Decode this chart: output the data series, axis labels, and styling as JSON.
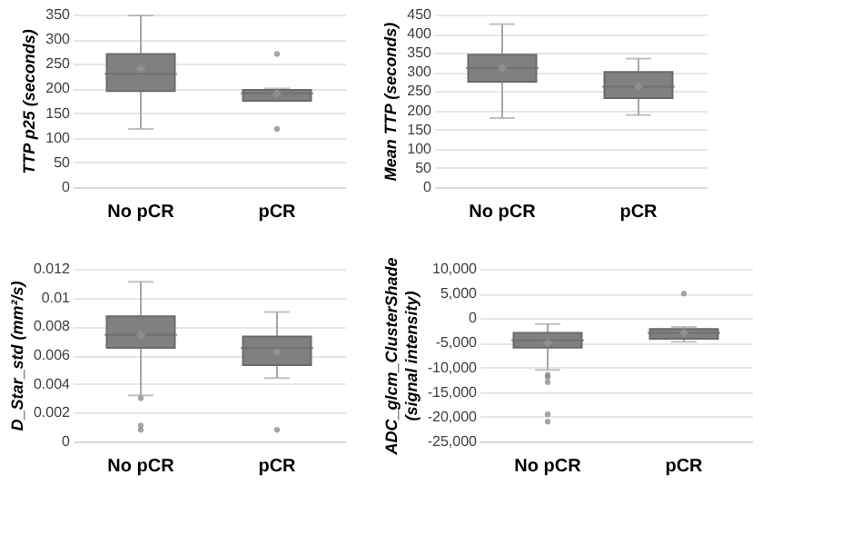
{
  "chart_data": [
    {
      "type": "box",
      "categories": [
        "No pCR",
        "pCR"
      ],
      "ylabel": "TTP p25 (seconds)",
      "ylim": [
        0,
        350
      ],
      "yticks": [
        0,
        50,
        100,
        150,
        200,
        250,
        300,
        350
      ],
      "grid": "y",
      "color": "#808080",
      "boxes": [
        {
          "low": 118,
          "q1": 195,
          "median": 230,
          "q3": 270,
          "high": 348,
          "mean": 240
        },
        {
          "low": 175,
          "q1": 175,
          "median": 190,
          "q3": 197,
          "high": 200,
          "mean": 190,
          "outliers": [
            270,
            118
          ]
        }
      ]
    },
    {
      "type": "box",
      "categories": [
        "No pCR",
        "pCR"
      ],
      "ylabel": "Mean TTP (seconds)",
      "ylim": [
        0,
        450
      ],
      "yticks": [
        0,
        50,
        100,
        150,
        200,
        250,
        300,
        350,
        400,
        450
      ],
      "grid": "y",
      "color": "#808080",
      "boxes": [
        {
          "low": 180,
          "q1": 275,
          "median": 310,
          "q3": 345,
          "high": 425,
          "mean": 310
        },
        {
          "low": 188,
          "q1": 232,
          "median": 262,
          "q3": 300,
          "high": 335,
          "mean": 262
        }
      ]
    },
    {
      "type": "box",
      "categories": [
        "No pCR",
        "pCR"
      ],
      "ylabel": "D_Star_std (mm²/s)",
      "ylim": [
        0,
        0.012
      ],
      "yticks": [
        0,
        0.002,
        0.004,
        0.006,
        0.008,
        0.01,
        0.012
      ],
      "grid": "y",
      "color": "#808080",
      "boxes": [
        {
          "low": 0.0032,
          "q1": 0.0065,
          "median": 0.0074,
          "q3": 0.0087,
          "high": 0.0111,
          "mean": 0.0074,
          "outliers": [
            0.003,
            0.0011,
            0.0008
          ]
        },
        {
          "low": 0.0044,
          "q1": 0.0053,
          "median": 0.0065,
          "q3": 0.0073,
          "high": 0.009,
          "mean": 0.0062,
          "outliers": [
            0.0008
          ]
        }
      ]
    },
    {
      "type": "box",
      "categories": [
        "No pCR",
        "pCR"
      ],
      "ylabel": "ADC_glcm_ClusterShade (signal intensity)",
      "ylim": [
        -25000,
        10000
      ],
      "yticks": [
        {
          "value": -25000,
          "label": "-25,000"
        },
        {
          "value": -20000,
          "label": "-20,000"
        },
        {
          "value": -15000,
          "label": "-15,000"
        },
        {
          "value": -10000,
          "label": "-10,000"
        },
        {
          "value": -5000,
          "label": "-5,000"
        },
        0,
        {
          "value": 5000,
          "label": "5,000"
        },
        {
          "value": 10000,
          "label": "10,000"
        }
      ],
      "grid": "y",
      "color": "#808080",
      "boxes": [
        {
          "low": -10500,
          "q1": -6000,
          "median": -4500,
          "q3": -3000,
          "high": -1200,
          "mean": -5000,
          "outliers": [
            -11500,
            -12000,
            -13000,
            -19500,
            -21000
          ]
        },
        {
          "low": -4800,
          "q1": -4200,
          "median": -3000,
          "q3": -2200,
          "high": -1800,
          "mean": -3000,
          "outliers": [
            5000
          ]
        }
      ]
    }
  ]
}
